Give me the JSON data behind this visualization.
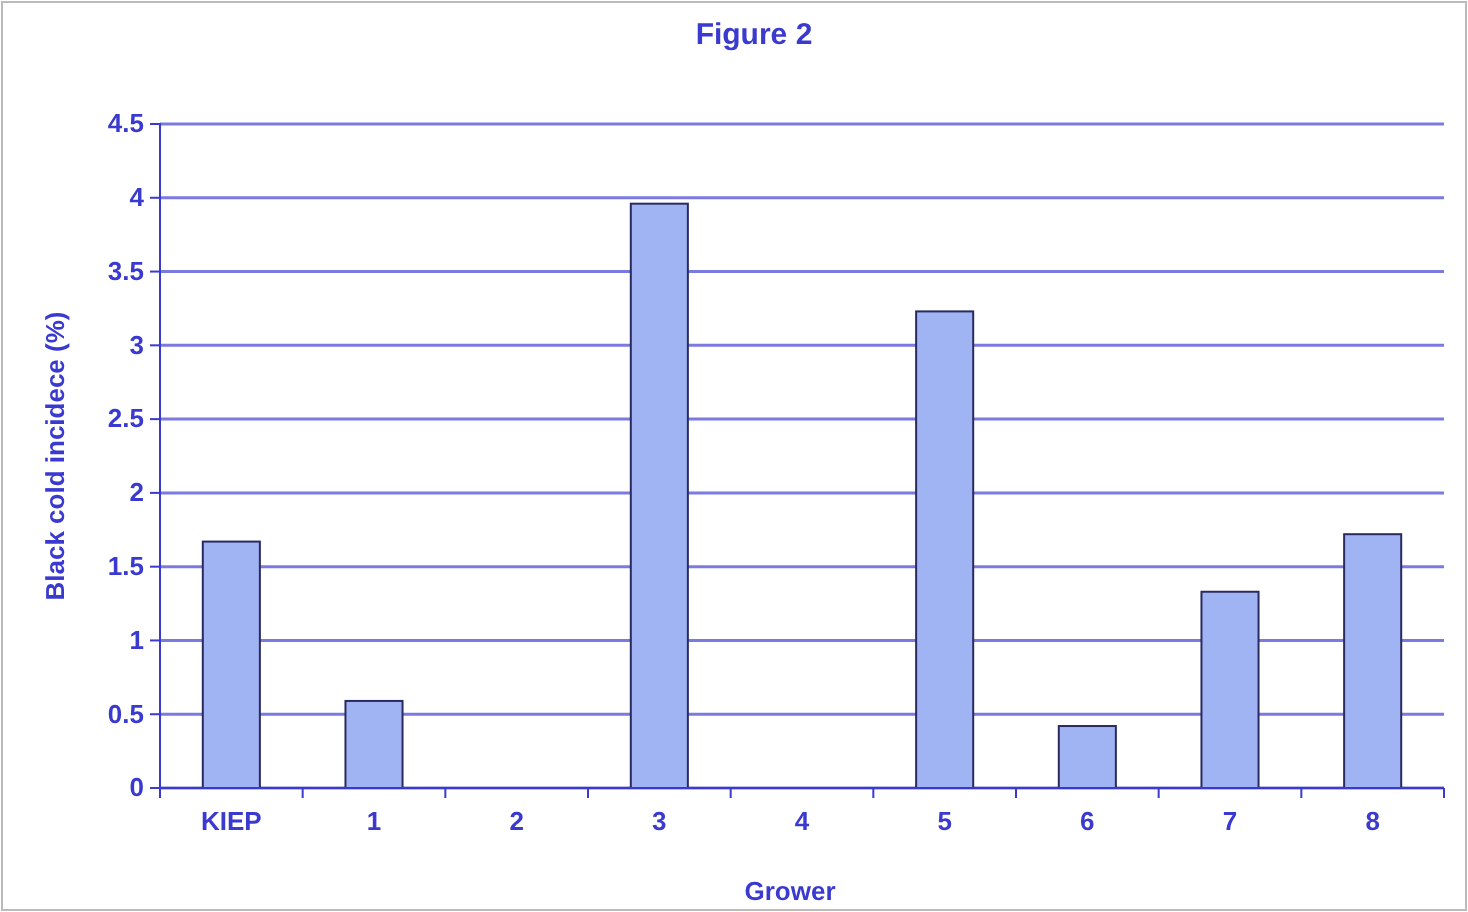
{
  "chart_data": {
    "type": "bar",
    "title": "Figure 2",
    "xlabel": "Grower",
    "ylabel": "Black cold incidece (%)",
    "categories": [
      "KIEP",
      "1",
      "2",
      "3",
      "4",
      "5",
      "6",
      "7",
      "8"
    ],
    "values": [
      1.67,
      0.59,
      0,
      3.96,
      0,
      3.23,
      0.42,
      1.33,
      1.72
    ],
    "color": "#a0b4f4",
    "ylim": [
      0,
      4.5
    ],
    "yticks": [
      0,
      0.5,
      1,
      1.5,
      2,
      2.5,
      3,
      3.5,
      4,
      4.5
    ],
    "grid": "y"
  }
}
